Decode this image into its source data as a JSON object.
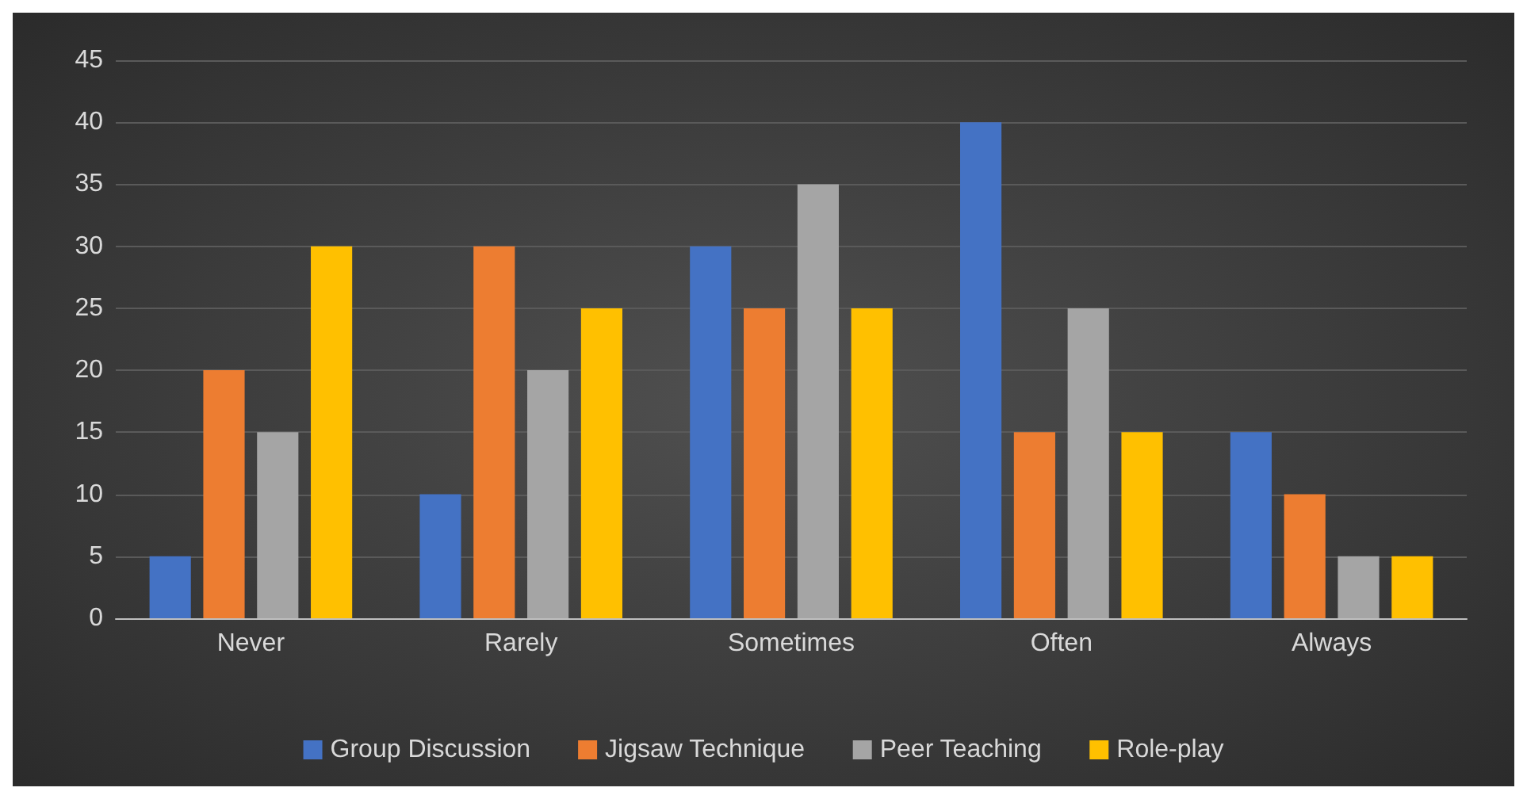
{
  "chart_data": {
    "type": "bar",
    "categories": [
      "Never",
      "Rarely",
      "Sometimes",
      "Often",
      "Always"
    ],
    "series": [
      {
        "name": "Group Discussion",
        "color": "#4472c4",
        "values": [
          5,
          10,
          30,
          40,
          15
        ]
      },
      {
        "name": "Jigsaw Technique",
        "color": "#ed7d31",
        "values": [
          20,
          30,
          25,
          15,
          10
        ]
      },
      {
        "name": "Peer Teaching",
        "color": "#a5a5a5",
        "values": [
          15,
          20,
          35,
          25,
          5
        ]
      },
      {
        "name": "Role-play",
        "color": "#ffc000",
        "values": [
          30,
          25,
          25,
          15,
          5
        ]
      }
    ],
    "ylim": [
      0,
      45
    ],
    "yticks": [
      0,
      5,
      10,
      15,
      20,
      25,
      30,
      35,
      40,
      45
    ],
    "grid": "y",
    "legend": "bottom"
  }
}
